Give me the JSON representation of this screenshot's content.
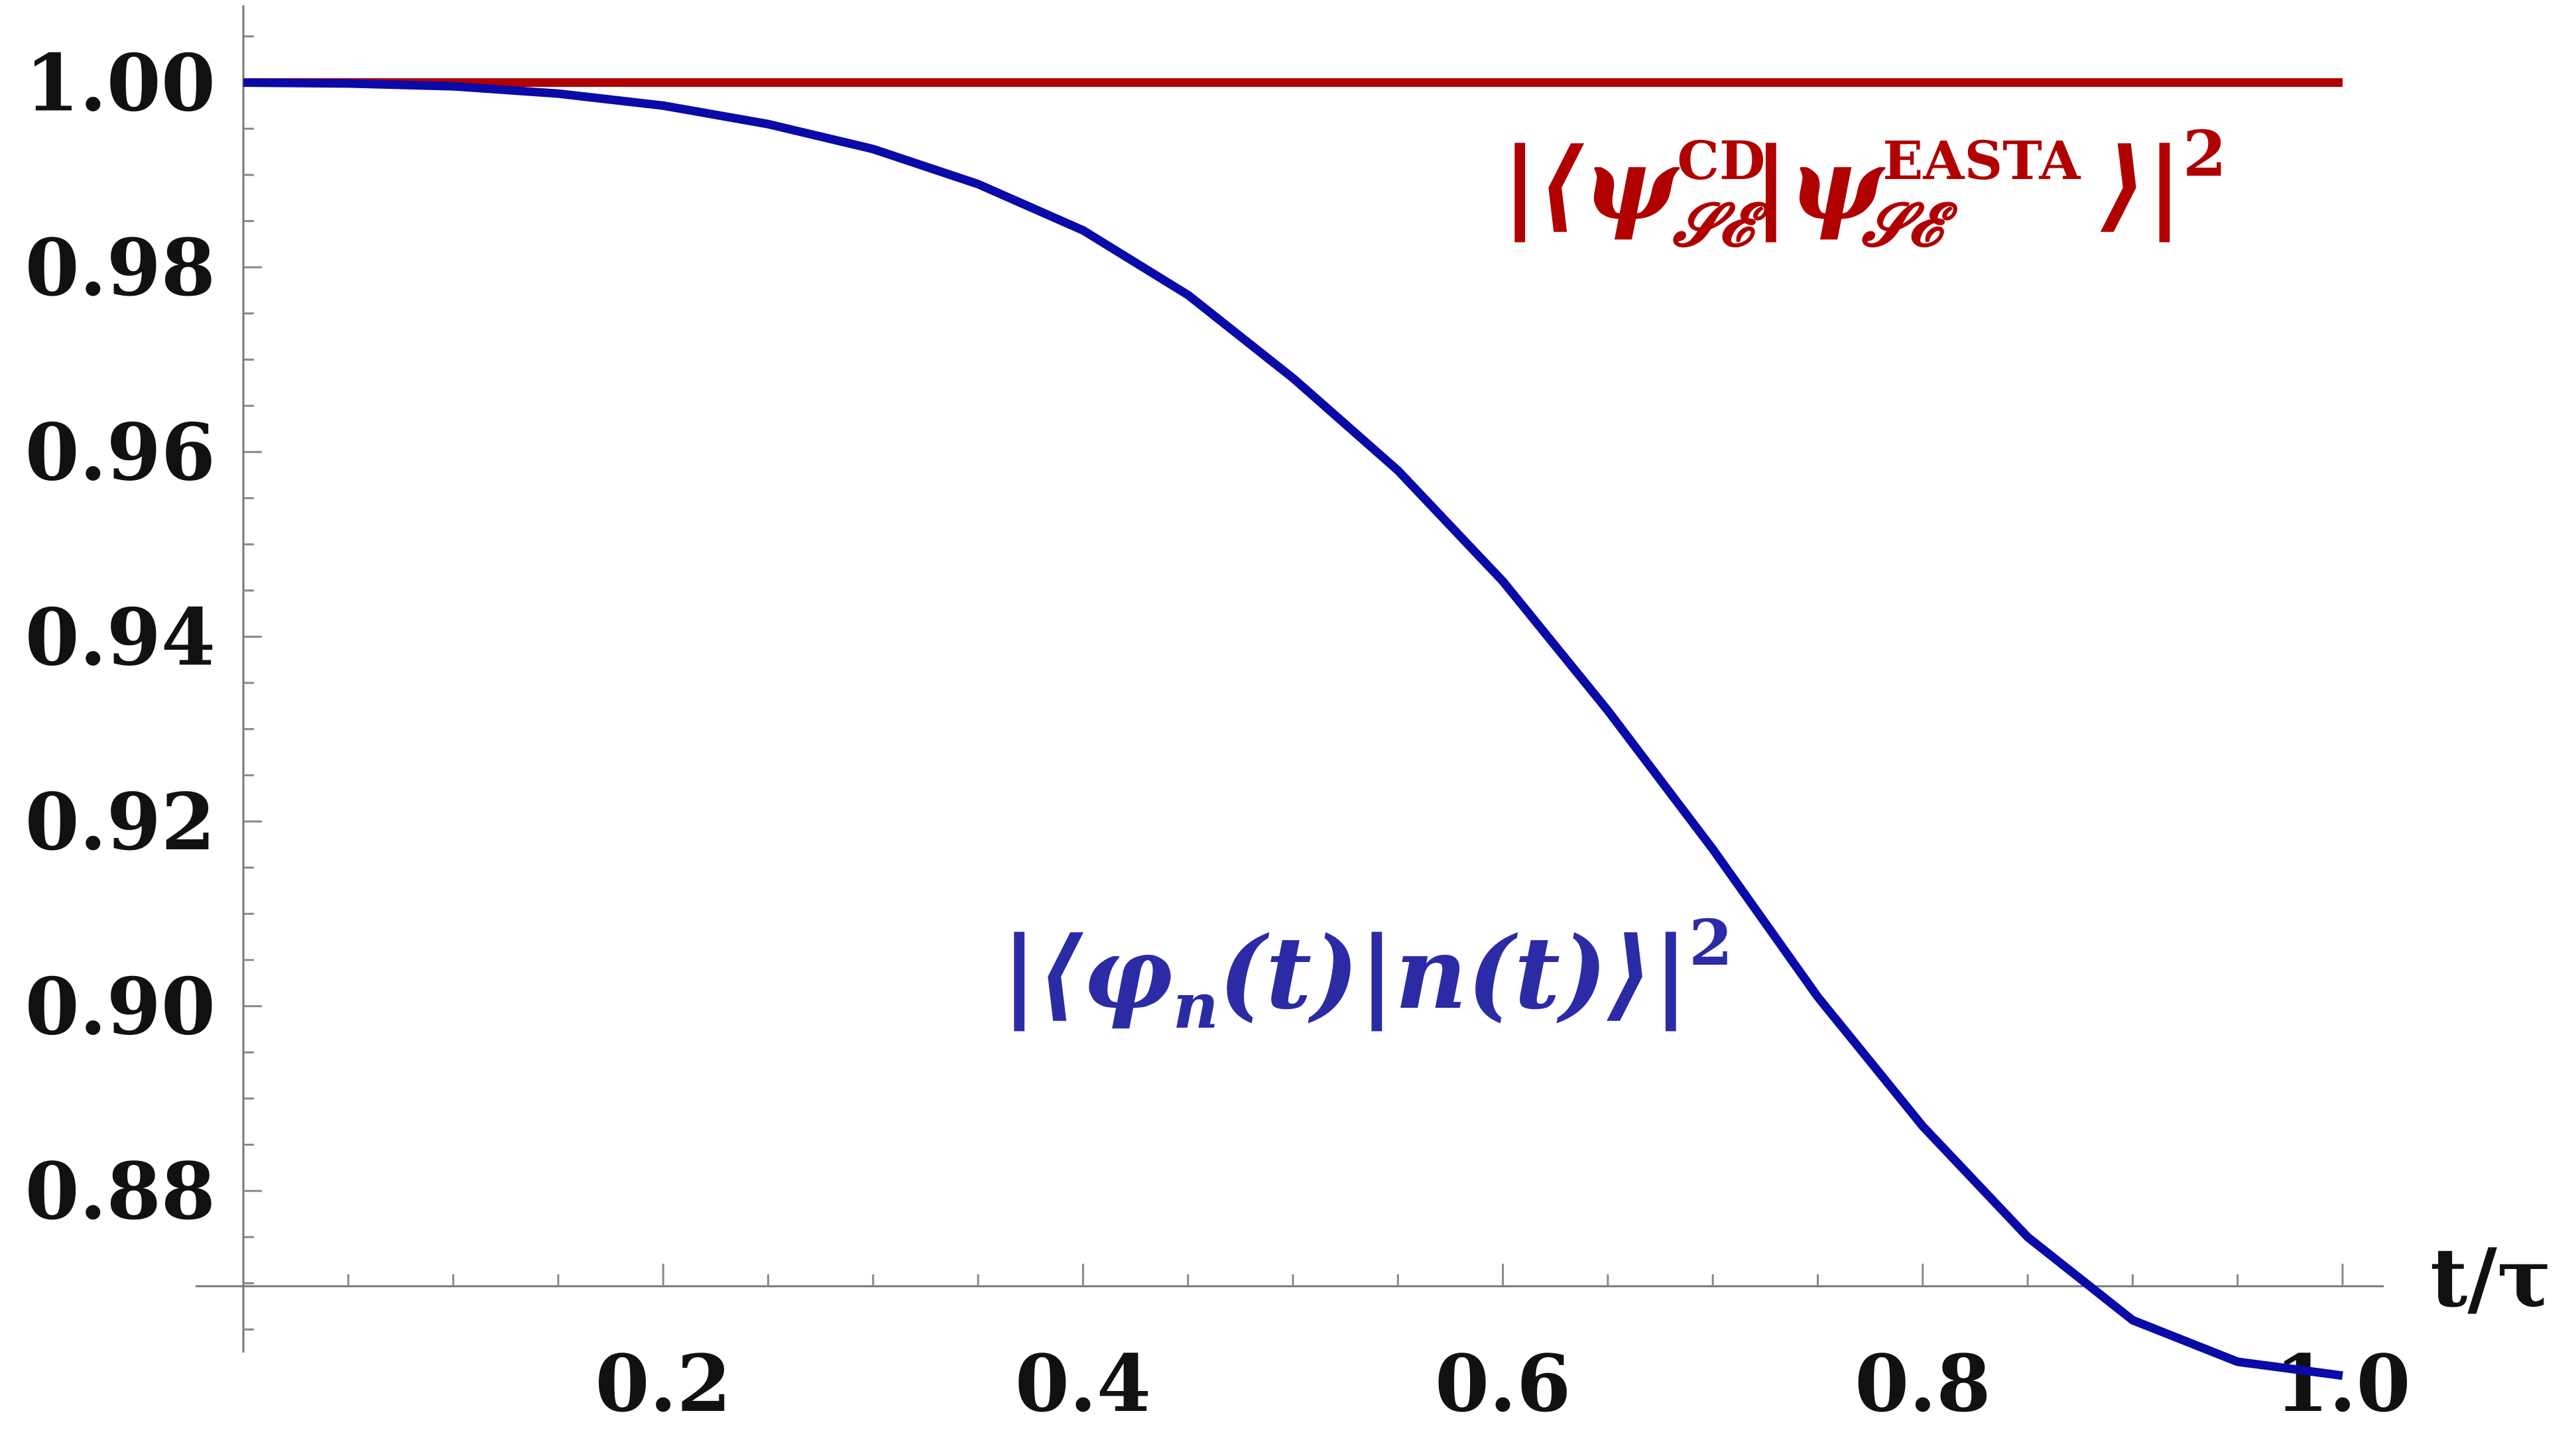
{
  "chart_data": {
    "type": "line",
    "xlabel": "t/τ",
    "ylabel": "",
    "xlim": [
      0.0,
      1.0
    ],
    "ylim": [
      0.8625,
      1.0075
    ],
    "x_ticks": [
      "0.2",
      "0.4",
      "0.6",
      "0.8",
      "1.0"
    ],
    "y_ticks": [
      "1.00",
      "0.98",
      "0.96",
      "0.94",
      "0.92",
      "0.90",
      "0.88"
    ],
    "grid": false,
    "series": [
      {
        "label": "|⟨ψ_SE^CD|ψ_SE^EASTA⟩|²",
        "color": "#b00000",
        "x": [
          0.0,
          0.1,
          0.2,
          0.3,
          0.4,
          0.5,
          0.6,
          0.7,
          0.8,
          0.9,
          1.0
        ],
        "y": [
          1.0,
          1.0,
          1.0,
          1.0,
          1.0,
          1.0,
          1.0,
          1.0,
          1.0,
          1.0,
          1.0
        ]
      },
      {
        "label": "|⟨φn(t)|n(t)⟩|²",
        "color": "#0a0aa8",
        "x": [
          0.0,
          0.05,
          0.1,
          0.15,
          0.2,
          0.25,
          0.3,
          0.35,
          0.4,
          0.45,
          0.5,
          0.55,
          0.6,
          0.65,
          0.7,
          0.75,
          0.8,
          0.85,
          0.9,
          0.95,
          1.0
        ],
        "y": [
          1.0,
          0.9999,
          0.9996,
          0.9988,
          0.9975,
          0.9955,
          0.9928,
          0.989,
          0.984,
          0.977,
          0.968,
          0.958,
          0.946,
          0.932,
          0.917,
          0.901,
          0.887,
          0.875,
          0.866,
          0.8615,
          0.86
        ]
      }
    ],
    "annotations": {
      "red": {
        "prefix": "|⟨ψ",
        "sup1": "CD",
        "sub1": "𝓢𝓔",
        "mid": "|ψ",
        "sup2": "EASTA",
        "sub2": "𝓢𝓔",
        "suffix": "⟩|",
        "power": "2"
      },
      "blue": {
        "prefix": "|⟨φ",
        "sub": "n",
        "mid": "(t)|n(t)⟩|",
        "power": "2"
      }
    }
  }
}
